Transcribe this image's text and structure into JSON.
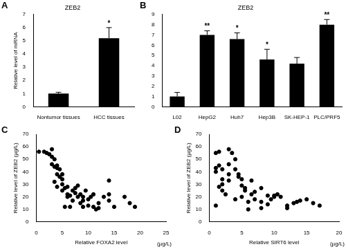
{
  "chart_data": [
    {
      "panel": "A",
      "type": "bar",
      "title": "ZEB2",
      "categories": [
        "Nontumor tissues",
        "HCC tissues"
      ],
      "values": [
        1.0,
        5.2
      ],
      "errors": [
        0.1,
        0.8
      ],
      "significance": [
        null,
        "*"
      ],
      "color": "#000000",
      "ylabel": "Relative level of mRNA",
      "ylim": [
        0,
        7
      ],
      "yticks": [
        0,
        1,
        2,
        3,
        4,
        5,
        6,
        7
      ],
      "grid": false
    },
    {
      "panel": "B",
      "type": "bar",
      "title": "ZEB2",
      "categories": [
        "L02",
        "HepG2",
        "Huh7",
        "Hep3B",
        "SK-HEP-1",
        "PLC/PRF5"
      ],
      "values": [
        1.0,
        7.0,
        6.6,
        4.6,
        4.2,
        8.0
      ],
      "errors": [
        0.4,
        0.4,
        0.6,
        1.0,
        0.6,
        0.5
      ],
      "significance": [
        null,
        "**",
        "*",
        "*",
        null,
        "**"
      ],
      "color": "#000000",
      "ylim": [
        0,
        9
      ],
      "yticks": [
        0,
        1,
        2,
        3,
        4,
        5,
        6,
        7,
        8,
        9
      ],
      "grid": false
    },
    {
      "panel": "C",
      "type": "scatter",
      "x": [
        0.5,
        1.5,
        2,
        2.5,
        3,
        3,
        3.5,
        3,
        3.5,
        4,
        4,
        4.5,
        4,
        4.5,
        5,
        5,
        3.5,
        4,
        5,
        5.5,
        5,
        6,
        6,
        6.5,
        6,
        6.5,
        5.5,
        7,
        7,
        7.5,
        7.5,
        8,
        8,
        8.5,
        8.5,
        9,
        9,
        9,
        9.5,
        10,
        10,
        10.5,
        11,
        11,
        11.5,
        12,
        12,
        13,
        14,
        14,
        14,
        15,
        17,
        18,
        19
      ],
      "values": [
        56,
        56,
        55,
        54,
        58,
        52,
        50,
        46,
        44,
        45,
        43,
        42,
        38,
        36,
        38,
        34,
        32,
        28,
        30,
        27,
        25,
        28,
        22,
        21,
        20,
        12,
        12,
        17,
        25,
        27,
        23,
        29,
        20,
        22,
        15,
        20,
        17,
        12,
        25,
        18,
        13,
        20,
        22,
        12,
        10,
        11,
        15,
        20,
        33,
        17,
        22,
        12,
        20,
        15,
        12
      ],
      "color": "#000000",
      "marker": "circle",
      "xlabel": "Relative FOXA2 level",
      "x_unit": "(µg/L)",
      "ylabel": "Relative level of ZEB2 (µg/L)",
      "xlim": [
        0,
        25
      ],
      "xticks": [
        0,
        5,
        10,
        15,
        20,
        25
      ],
      "ylim": [
        0,
        70
      ],
      "yticks": [
        0,
        10,
        20,
        30,
        40,
        50,
        60,
        70
      ],
      "grid": false
    },
    {
      "panel": "D",
      "type": "scatter",
      "x": [
        1,
        1.5,
        1,
        1.5,
        1,
        2,
        1.5,
        1,
        2,
        2,
        2,
        2.5,
        3,
        3,
        3,
        3,
        3.5,
        4,
        4,
        4,
        4.5,
        4.5,
        5,
        5,
        5,
        5.5,
        5.5,
        6,
        6,
        6.5,
        6.5,
        7,
        7,
        8,
        8,
        8,
        9,
        9,
        9.5,
        10,
        10,
        10.5,
        11,
        12,
        12,
        13,
        13.5,
        14,
        15,
        16,
        17
      ],
      "values": [
        55,
        56,
        43,
        45,
        40,
        42,
        28,
        13,
        34,
        30,
        25,
        22,
        58,
        46,
        38,
        33,
        55,
        50,
        42,
        18,
        38,
        36,
        34,
        29,
        20,
        25,
        27,
        10,
        16,
        22,
        33,
        24,
        18,
        27,
        16,
        11,
        14,
        21,
        18,
        21,
        20,
        22,
        20,
        13,
        11,
        15,
        16,
        17,
        18,
        15,
        13
      ],
      "color": "#000000",
      "marker": "circle",
      "xlabel": "Relative SIRT6 level",
      "x_unit": "(µg/L)",
      "ylabel": "Relative level of ZEB2 (µg/L)",
      "xlim": [
        0,
        20
      ],
      "xticks": [
        0,
        5,
        10,
        15,
        20
      ],
      "ylim": [
        0,
        70
      ],
      "yticks": [
        0,
        10,
        20,
        30,
        40,
        50,
        60,
        70
      ],
      "grid": false
    }
  ]
}
